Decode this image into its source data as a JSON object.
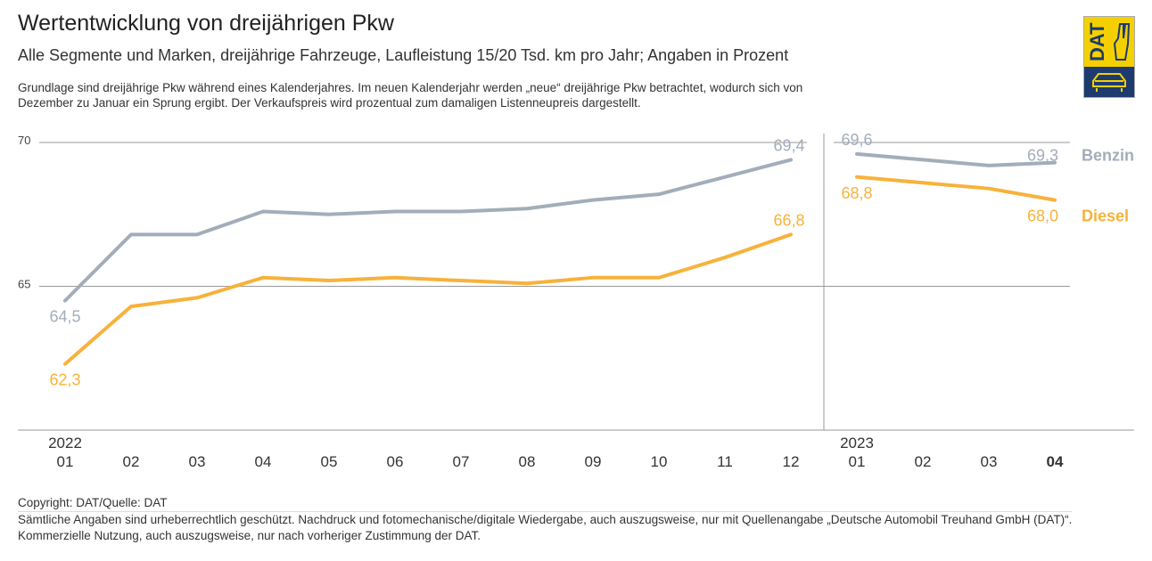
{
  "header": {
    "title": "Wertentwicklung von dreijährigen Pkw",
    "subtitle": "Alle Segmente und Marken, dreijährige Fahrzeuge, Laufleistung 15/20 Tsd. km pro Jahr; Angaben in Prozent",
    "note": "Grundlage sind dreijährige Pkw während eines Kalenderjahres. Im neuen Kalenderjahr werden „neue“ dreijährige Pkw betrachtet, wodurch sich von Dezember zu Januar ein Sprung ergibt. Der Verkaufspreis wird prozentual zum damaligen Listenneupreis dargestellt."
  },
  "logo": {
    "text": "DAT",
    "colors": {
      "yellow": "#f5d000",
      "navy": "#1d3b6e"
    }
  },
  "chart_data": {
    "type": "line",
    "ylim": [
      60,
      70
    ],
    "yticks": [
      "70",
      "65"
    ],
    "grid": true,
    "years": [
      "2022",
      "2023"
    ],
    "categories": [
      "01",
      "02",
      "03",
      "04",
      "05",
      "06",
      "07",
      "08",
      "09",
      "10",
      "11",
      "12",
      "01",
      "02",
      "03",
      "04"
    ],
    "highlight_category_index": 15,
    "series": [
      {
        "name": "Benzin",
        "color": "#a3adba",
        "values": [
          64.5,
          66.8,
          66.8,
          67.6,
          67.5,
          67.6,
          67.6,
          67.7,
          68.0,
          68.2,
          68.8,
          69.4,
          69.6,
          69.4,
          69.2,
          69.3
        ],
        "labels": [
          {
            "i": 0,
            "text": "64,5"
          },
          {
            "i": 11,
            "text": "69,4"
          },
          {
            "i": 12,
            "text": "69,6"
          },
          {
            "i": 15,
            "text": "69,3"
          }
        ]
      },
      {
        "name": "Diesel",
        "color": "#f7b23b",
        "values": [
          62.3,
          64.3,
          64.6,
          65.3,
          65.2,
          65.3,
          65.2,
          65.1,
          65.3,
          65.3,
          66.0,
          66.8,
          68.8,
          68.6,
          68.4,
          68.0
        ],
        "labels": [
          {
            "i": 0,
            "text": "62,3"
          },
          {
            "i": 11,
            "text": "66,8"
          },
          {
            "i": 12,
            "text": "68,8"
          },
          {
            "i": 15,
            "text": "68,0"
          }
        ]
      }
    ]
  },
  "footer": {
    "copyright": "Copyright: DAT/Quelle: DAT",
    "line2": "Sämtliche Angaben sind urheberrechtlich geschützt. Nachdruck und fotomechanische/digitale Wiedergabe, auch auszugsweise, nur mit Quellenangabe „Deutsche Automobil Treuhand GmbH (DAT)“.",
    "line3": "Kommerzielle Nutzung, auch auszugsweise, nur nach vorheriger Zustimmung der DAT."
  }
}
